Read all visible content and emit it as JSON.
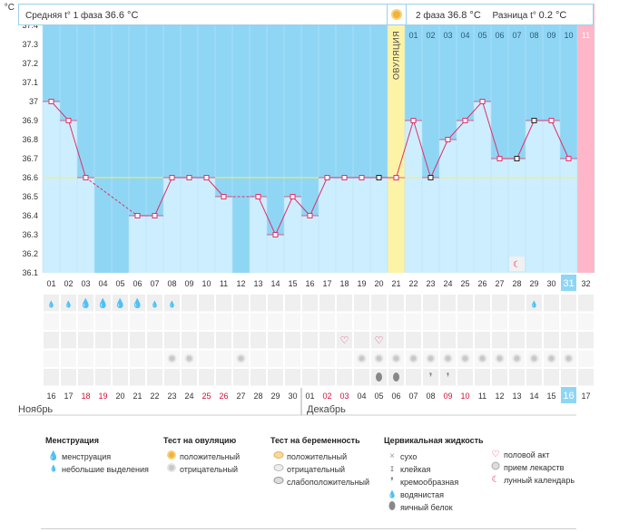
{
  "header": {
    "phase1_label": "Средняя t° 1 фаза",
    "phase1_value": "36.6 °C",
    "phase2_label": "2 фаза",
    "phase2_value": "36.8 °C",
    "diff_label": "Разница t°",
    "diff_value": "0.2 °C",
    "unit": "°C"
  },
  "ovulation_label": "ОВУЛЯЦИЯ",
  "months": {
    "first": "Ноябрь",
    "second": "Декабрь"
  },
  "colors": {
    "phase_bg": "#8fd6f5",
    "bar": "#cdeeff",
    "ovulation": "#fdf3a6",
    "menstruation_expected": "#ffb6c8",
    "line": "#e0306a",
    "coverline": "#f5ef6a",
    "today": "#8fd6f5"
  },
  "chart_data": {
    "type": "line",
    "ylabel": "°C",
    "ylim": [
      36.1,
      37.4
    ],
    "yticks": [
      "37.4",
      "37.3",
      "37.2",
      "37.1",
      "37",
      "36.9",
      "36.8",
      "36.7",
      "36.6",
      "36.5",
      "36.4",
      "36.3",
      "36.2",
      "36.1"
    ],
    "cycle_days": [
      "01",
      "02",
      "03",
      "04",
      "05",
      "06",
      "07",
      "08",
      "09",
      "10",
      "11",
      "12",
      "13",
      "14",
      "15",
      "16",
      "17",
      "18",
      "19",
      "20",
      "21",
      "22",
      "23",
      "24",
      "25",
      "26",
      "27",
      "28",
      "29",
      "30",
      "31",
      "32"
    ],
    "dates": [
      "16",
      "17",
      "18",
      "19",
      "20",
      "21",
      "22",
      "23",
      "24",
      "25",
      "26",
      "27",
      "28",
      "29",
      "30",
      "01",
      "02",
      "03",
      "04",
      "05",
      "06",
      "07",
      "08",
      "09",
      "10",
      "11",
      "12",
      "13",
      "14",
      "15",
      "16",
      "17"
    ],
    "weekend_dates": [
      3,
      4,
      10,
      11,
      17,
      18,
      24,
      25,
      31
    ],
    "phase2_days": [
      "01",
      "02",
      "03",
      "04",
      "05",
      "06",
      "07",
      "08",
      "09",
      "10",
      "11"
    ],
    "ovulation_day": 21,
    "expected_period_day": 32,
    "current_day": 31,
    "temperatures": [
      37.0,
      36.9,
      36.6,
      null,
      null,
      36.4,
      36.4,
      36.6,
      36.6,
      36.6,
      36.5,
      null,
      36.5,
      36.3,
      36.5,
      36.4,
      36.6,
      36.6,
      36.6,
      36.6,
      36.6,
      36.9,
      36.6,
      36.8,
      36.9,
      37.0,
      36.7,
      36.7,
      36.9,
      36.9,
      36.7,
      null
    ],
    "black_markers": [
      20,
      23,
      28,
      29
    ],
    "coverline": 36.6,
    "menstruation_heavy": [
      3,
      4,
      5,
      6
    ],
    "menstruation_light": [
      1,
      2,
      7,
      8,
      29
    ],
    "intercourse_days": [
      18,
      20
    ],
    "ovulation_test_negative": [
      8,
      9,
      12,
      19,
      20,
      21,
      22,
      23,
      24,
      25,
      26,
      27,
      28,
      29,
      30,
      31
    ],
    "cervical_watery": [
      20,
      21
    ],
    "cervical_creamy": [
      23,
      24
    ],
    "moon_day": 28
  },
  "legend": {
    "menstruation": {
      "title": "Менструация",
      "items": [
        "менструация",
        "небольшие выделения"
      ]
    },
    "ovulation_test": {
      "title": "Тест на овуляцию",
      "items": [
        "положительный",
        "отрицательный"
      ]
    },
    "pregnancy_test": {
      "title": "Тест на беременность",
      "items": [
        "положительный",
        "отрицательный",
        "слабоположительный"
      ]
    },
    "cervical": {
      "title": "Цервикальная жидкость",
      "items": [
        "сухо",
        "клейкая",
        "кремообразная",
        "водянистая",
        "яичный белок"
      ]
    },
    "other": {
      "items": [
        "половой акт",
        "прием лекарств",
        "лунный календарь"
      ]
    }
  }
}
